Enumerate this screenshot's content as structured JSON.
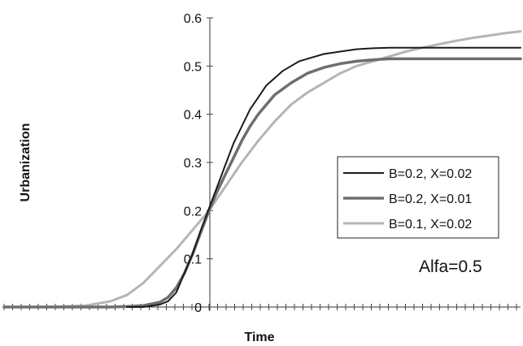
{
  "chart_data": {
    "type": "line",
    "xlabel": "Time",
    "ylabel": "Urbanization",
    "ylim": [
      0,
      0.6
    ],
    "yticks": [
      "0",
      "0.1",
      "0.2",
      "0.3",
      "0.4",
      "0.5",
      "0.6"
    ],
    "xlim": [
      -25,
      38
    ],
    "grid": false,
    "legend_position": "right",
    "annotation": "Alfa=0.5",
    "series": [
      {
        "name": "B=0.2, X=0.02",
        "color": "#1a1a1a",
        "x": [
          -10,
          -8,
          -6,
          -5,
          -4,
          -3,
          -2,
          -1,
          0,
          1,
          2,
          3,
          4,
          5,
          6,
          7,
          8,
          9,
          10,
          11,
          12,
          14,
          16,
          18,
          20,
          22,
          24,
          26,
          28,
          30,
          32,
          34,
          36,
          38
        ],
        "y": [
          0.0,
          0.0,
          0.005,
          0.012,
          0.03,
          0.07,
          0.11,
          0.16,
          0.205,
          0.25,
          0.295,
          0.34,
          0.375,
          0.41,
          0.435,
          0.46,
          0.475,
          0.49,
          0.5,
          0.51,
          0.515,
          0.525,
          0.53,
          0.535,
          0.537,
          0.538,
          0.538,
          0.538,
          0.538,
          0.538,
          0.538,
          0.538,
          0.538,
          0.538
        ]
      },
      {
        "name": "B=0.2, X=0.01",
        "color": "#6e6e6e",
        "x": [
          -25,
          -20,
          -15,
          -12,
          -10,
          -8,
          -6,
          -5,
          -4,
          -3,
          -2,
          -1,
          0,
          1,
          2,
          3,
          4,
          5,
          6,
          7,
          8,
          10,
          12,
          14,
          16,
          18,
          20,
          22,
          24,
          26,
          28,
          30,
          32,
          34,
          36,
          38
        ],
        "y": [
          0.0,
          0.0,
          0.0,
          0.0,
          0.001,
          0.003,
          0.01,
          0.02,
          0.04,
          0.07,
          0.11,
          0.155,
          0.2,
          0.24,
          0.275,
          0.31,
          0.345,
          0.375,
          0.4,
          0.42,
          0.44,
          0.465,
          0.485,
          0.497,
          0.505,
          0.51,
          0.513,
          0.515,
          0.515,
          0.515,
          0.515,
          0.515,
          0.515,
          0.515,
          0.515,
          0.515
        ]
      },
      {
        "name": "B=0.1, X=0.02",
        "color": "#b5b5b5",
        "x": [
          -25,
          -20,
          -15,
          -12,
          -10,
          -8,
          -6,
          -4,
          -2,
          0,
          2,
          4,
          6,
          8,
          10,
          12,
          14,
          16,
          18,
          20,
          22,
          24,
          26,
          28,
          30,
          32,
          34,
          36,
          38
        ],
        "y": [
          0.0,
          0.0,
          0.003,
          0.012,
          0.025,
          0.05,
          0.085,
          0.12,
          0.16,
          0.2,
          0.25,
          0.3,
          0.345,
          0.385,
          0.42,
          0.445,
          0.465,
          0.485,
          0.5,
          0.51,
          0.52,
          0.53,
          0.538,
          0.545,
          0.552,
          0.558,
          0.563,
          0.568,
          0.572
        ]
      }
    ]
  }
}
